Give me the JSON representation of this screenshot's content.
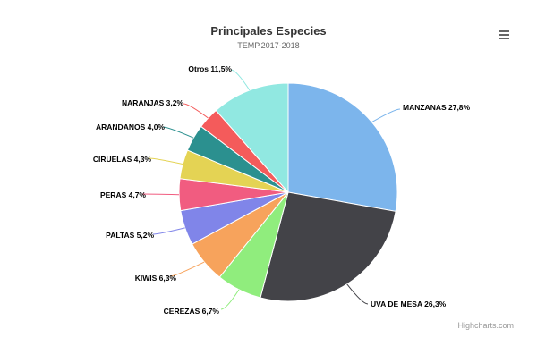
{
  "chart_data": {
    "type": "pie",
    "title": "Principales Especies",
    "subtitle": "TEMP.2017-2018",
    "slices": [
      {
        "name": "MANZANAS",
        "label": "MANZANAS 27,8%",
        "value": 27.8,
        "color": "#7cb5ec"
      },
      {
        "name": "UVA DE MESA",
        "label": "UVA DE MESA 26,3%",
        "value": 26.3,
        "color": "#434348"
      },
      {
        "name": "CEREZAS",
        "label": "CEREZAS 6,7%",
        "value": 6.7,
        "color": "#90ed7d"
      },
      {
        "name": "KIWIS",
        "label": "KIWIS 6,3%",
        "value": 6.3,
        "color": "#f7a35c"
      },
      {
        "name": "PALTAS",
        "label": "PALTAS 5,2%",
        "value": 5.2,
        "color": "#8085e9"
      },
      {
        "name": "PERAS",
        "label": "PERAS 4,7%",
        "value": 4.7,
        "color": "#f15c80"
      },
      {
        "name": "CIRUELAS",
        "label": "CIRUELAS 4,3%",
        "value": 4.3,
        "color": "#e4d354"
      },
      {
        "name": "ARANDANOS",
        "label": "ARANDANOS 4,0%",
        "value": 4.0,
        "color": "#2b908f"
      },
      {
        "name": "NARANJAS",
        "label": "NARANJAS 3,2%",
        "value": 3.2,
        "color": "#f45b5b"
      },
      {
        "name": "Otros",
        "label": "Otros 11,5%",
        "value": 11.5,
        "color": "#91e8e1"
      }
    ]
  },
  "menu": {
    "icon": "hamburger-menu-icon"
  },
  "credits": {
    "text": "Highcharts.com"
  }
}
